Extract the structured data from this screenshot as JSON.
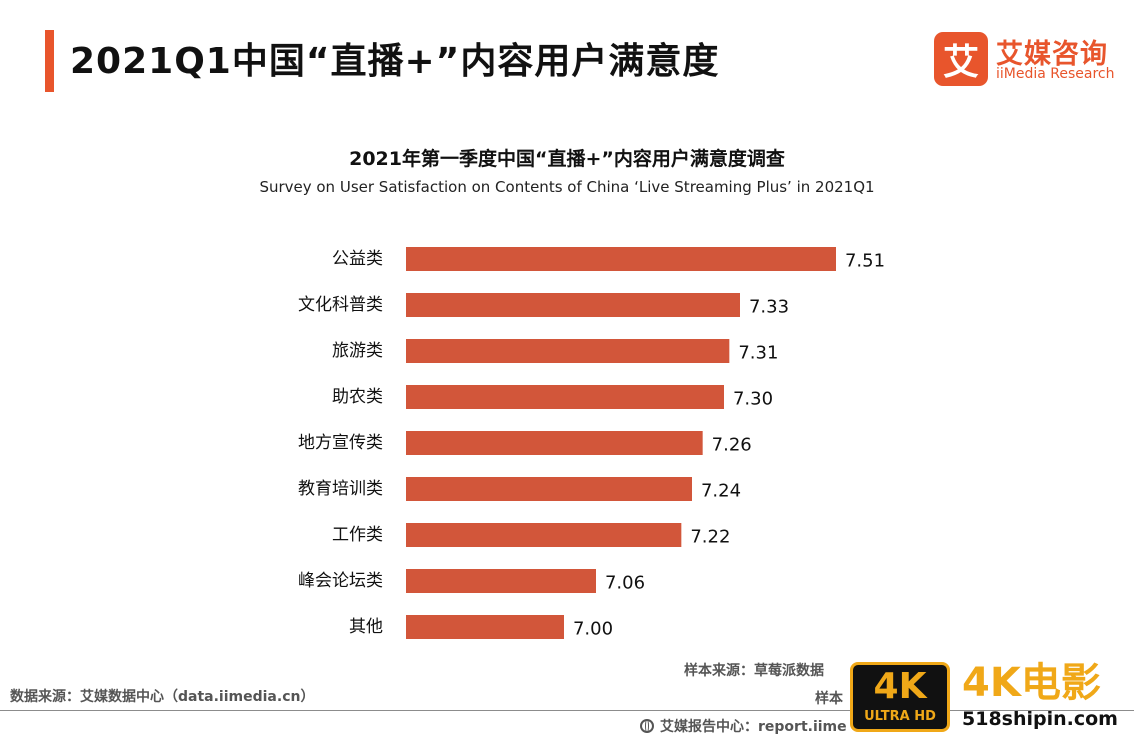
{
  "header": {
    "title": "2021Q1中国“直播+”内容用户满意度"
  },
  "logo": {
    "mark": "艾",
    "name_cn": "艾媒咨询",
    "name_en": "iiMedia Research"
  },
  "colors": {
    "accent": "#e8552c",
    "bar": "#d2563a"
  },
  "chart_data": {
    "type": "bar",
    "orientation": "horizontal",
    "title": "2021年第一季度中国“直播+”内容用户满意度调查",
    "subtitle": "Survey on User Satisfaction on Contents of China ‘Live Streaming Plus’ in 2021Q1",
    "categories": [
      "公益类",
      "文化科普类",
      "旅游类",
      "助农类",
      "地方宣传类",
      "教育培训类",
      "工作类",
      "峰会论坛类",
      "其他"
    ],
    "values": [
      7.51,
      7.33,
      7.31,
      7.3,
      7.26,
      7.24,
      7.22,
      7.06,
      7.0
    ],
    "value_labels": [
      "7.51",
      "7.33",
      "7.31",
      "7.30",
      "7.26",
      "7.24",
      "7.22",
      "7.06",
      "7.00"
    ],
    "x_axis_visible": false,
    "grid": false,
    "legend": "none"
  },
  "footer": {
    "source_left": "数据来源：艾媒数据中心（data.iimedia.cn）",
    "sample_source": "样本来源：草莓派数据",
    "sample_size": "样本",
    "report_center": "艾媒报告中心：report.iime"
  },
  "watermark": {
    "badge_big": "4K",
    "badge_small": "ULTRA HD",
    "text": "4K电影",
    "url": "518shipin.com"
  }
}
